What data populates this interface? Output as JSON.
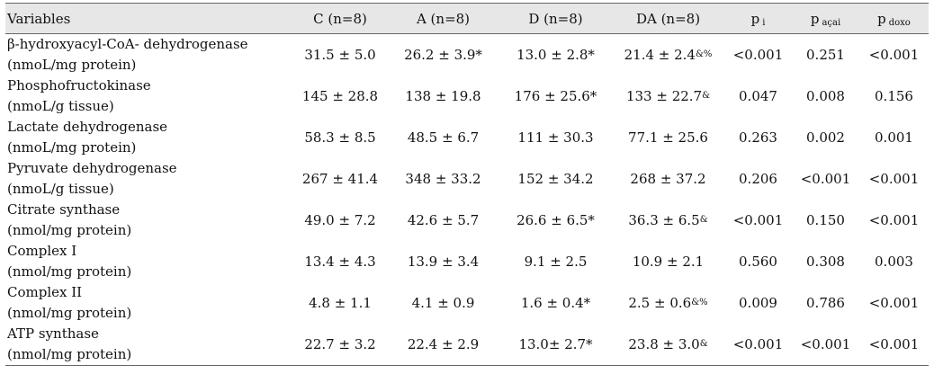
{
  "table": {
    "headers": {
      "variables": "Variables",
      "c": "C (n=8)",
      "a": "A (n=8)",
      "d": "D (n=8)",
      "da": "DA (n=8)",
      "p_i_main": "p",
      "p_i_sub": "i",
      "p_acai_main": "p",
      "p_acai_sub": "açai",
      "p_doxo_main": "p",
      "p_doxo_sub": "doxo"
    },
    "rows": [
      {
        "name": "β-hydroxyacyl-CoA- dehydrogenase",
        "unit": "(nmoL/mg protein)",
        "c": "31.5 ± 5.0",
        "a": "26.2 ± 3.9*",
        "d": "13.0 ± 2.8*",
        "da": "21.4 ± 2.4",
        "da_mark": "&%",
        "p_i": "<0.001",
        "p_acai": "0.251",
        "p_doxo": "<0.001"
      },
      {
        "name": "Phosphofructokinase",
        "unit": "(nmoL/g tissue)",
        "c": "145 ± 28.8",
        "a": "138 ± 19.8",
        "d": "176 ± 25.6*",
        "da": "133 ± 22.7",
        "da_mark": "&",
        "p_i": "0.047",
        "p_acai": "0.008",
        "p_doxo": "0.156"
      },
      {
        "name": "Lactate dehydrogenase",
        "unit": "(nmoL/mg protein)",
        "c": "58.3 ± 8.5",
        "a": "48.5 ± 6.7",
        "d": "111 ± 30.3",
        "da": "77.1 ± 25.6",
        "da_mark": "",
        "p_i": "0.263",
        "p_acai": "0.002",
        "p_doxo": "0.001"
      },
      {
        "name": "Pyruvate dehydrogenase",
        "unit": "(nmoL/g tissue)",
        "c": "267 ± 41.4",
        "a": "348 ± 33.2",
        "d": "152 ± 34.2",
        "da": "268 ± 37.2",
        "da_mark": "",
        "p_i": "0.206",
        "p_acai": "<0.001",
        "p_doxo": "<0.001"
      },
      {
        "name": "Citrate synthase",
        "unit": "(nmol/mg protein)",
        "c": "49.0 ± 7.2",
        "a": "42.6 ± 5.7",
        "d": "26.6 ± 6.5*",
        "da": "36.3 ± 6.5",
        "da_mark": "&",
        "p_i": "<0.001",
        "p_acai": "0.150",
        "p_doxo": "<0.001"
      },
      {
        "name": "Complex I",
        "unit": "(nmol/mg protein)",
        "c": "13.4 ± 4.3",
        "a": "13.9 ± 3.4",
        "d": "9.1 ± 2.5",
        "da": "10.9 ± 2.1",
        "da_mark": "",
        "p_i": "0.560",
        "p_acai": "0.308",
        "p_doxo": "0.003"
      },
      {
        "name": "Complex II",
        "unit": "(nmol/mg protein)",
        "c": "4.8 ± 1.1",
        "a": "4.1 ± 0.9",
        "d": "1.6 ± 0.4*",
        "da": "2.5 ± 0.6",
        "da_mark": "&%",
        "p_i": "0.009",
        "p_acai": "0.786",
        "p_doxo": "<0.001"
      },
      {
        "name": "ATP synthase",
        "unit": "(nmol/mg protein)",
        "c": "22.7 ± 3.2",
        "a": "22.4 ± 2.9",
        "d": "13.0± 2.7*",
        "da": "23.8 ± 3.0",
        "da_mark": "&",
        "p_i": "<0.001",
        "p_acai": "<0.001",
        "p_doxo": "<0.001"
      }
    ]
  }
}
